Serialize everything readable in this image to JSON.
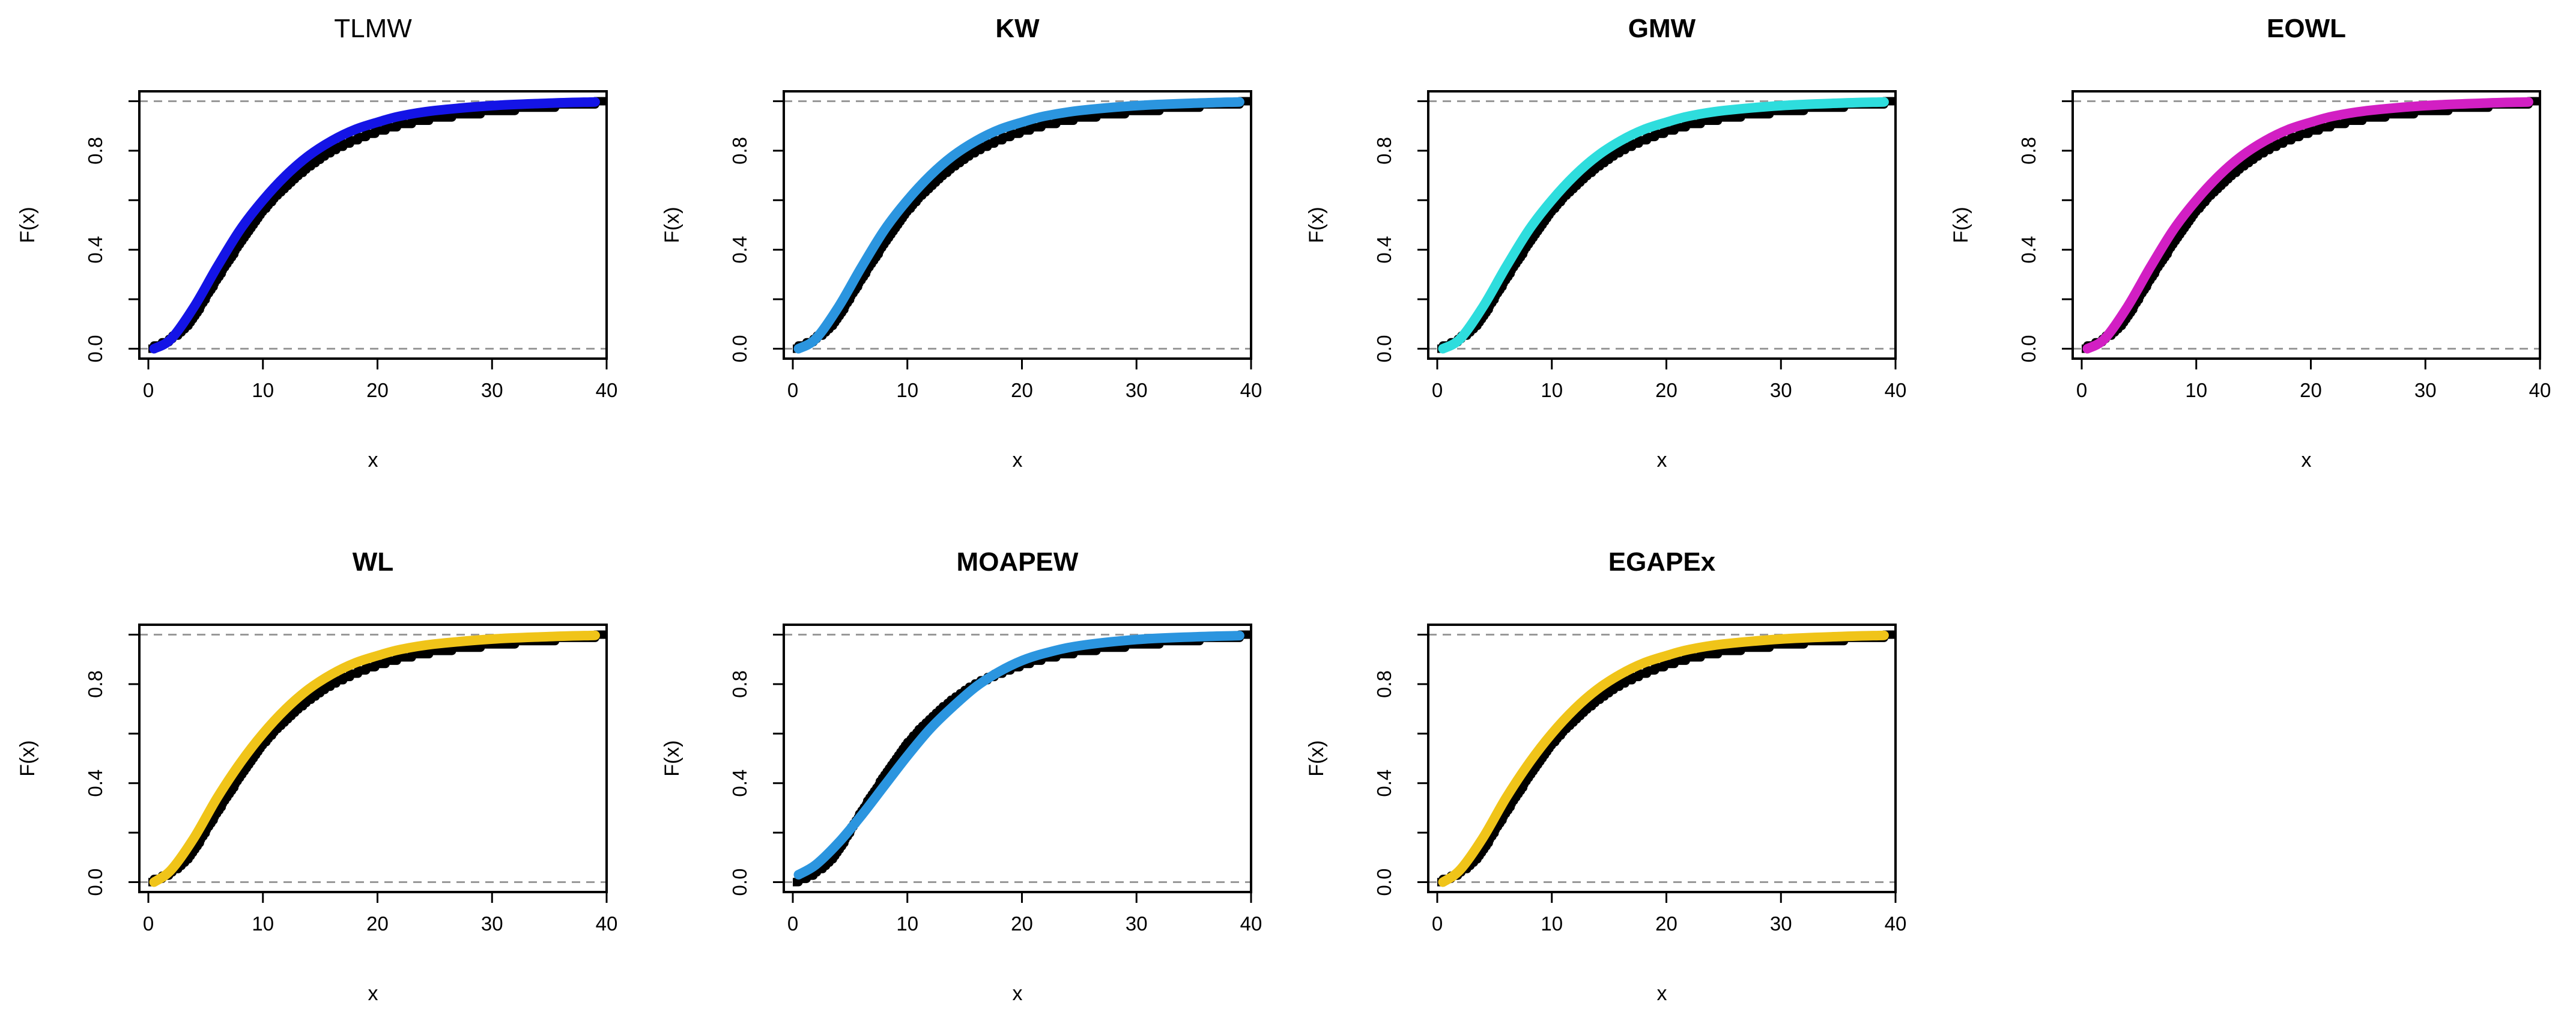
{
  "chart_data": [
    {
      "type": "line",
      "title": "TLMW",
      "title_bold": false,
      "xlabel": "x",
      "ylabel": "F(x)",
      "xlim": [
        0,
        40
      ],
      "ylim": [
        0,
        1
      ],
      "xticks": [
        "0",
        "10",
        "20",
        "30",
        "40"
      ],
      "yticks": [
        "0.0",
        "0.4",
        "0.8"
      ],
      "reference_lines": [
        0,
        1
      ],
      "series": [
        {
          "name": "Empirical CDF",
          "color": "#000000",
          "style": "step"
        },
        {
          "name": "TLMW fitted CDF",
          "color": "#1414E6",
          "style": "smooth",
          "x": [
            0.5,
            2,
            4,
            6,
            8,
            10,
            12,
            14,
            16,
            18,
            20,
            22,
            25,
            30,
            35,
            39
          ],
          "values": [
            0.0,
            0.04,
            0.17,
            0.33,
            0.48,
            0.6,
            0.7,
            0.78,
            0.84,
            0.885,
            0.915,
            0.94,
            0.962,
            0.982,
            0.992,
            0.997
          ]
        }
      ]
    },
    {
      "type": "line",
      "title": "KW",
      "title_bold": true,
      "xlabel": "x",
      "ylabel": "F(x)",
      "xlim": [
        0,
        40
      ],
      "ylim": [
        0,
        1
      ],
      "xticks": [
        "0",
        "10",
        "20",
        "30",
        "40"
      ],
      "yticks": [
        "0.0",
        "0.4",
        "0.8"
      ],
      "reference_lines": [
        0,
        1
      ],
      "series": [
        {
          "name": "Empirical CDF",
          "color": "#000000",
          "style": "step"
        },
        {
          "name": "KW fitted CDF",
          "color": "#2B95DF",
          "style": "smooth",
          "x": [
            0.5,
            2,
            4,
            6,
            8,
            10,
            12,
            14,
            16,
            18,
            20,
            22,
            25,
            30,
            35,
            39
          ],
          "values": [
            0.0,
            0.04,
            0.17,
            0.33,
            0.48,
            0.6,
            0.7,
            0.78,
            0.84,
            0.885,
            0.915,
            0.94,
            0.962,
            0.982,
            0.992,
            0.997
          ]
        }
      ]
    },
    {
      "type": "line",
      "title": "GMW",
      "title_bold": true,
      "xlabel": "x",
      "ylabel": "F(x)",
      "xlim": [
        0,
        40
      ],
      "ylim": [
        0,
        1
      ],
      "xticks": [
        "0",
        "10",
        "20",
        "30",
        "40"
      ],
      "yticks": [
        "0.0",
        "0.4",
        "0.8"
      ],
      "reference_lines": [
        0,
        1
      ],
      "series": [
        {
          "name": "Empirical CDF",
          "color": "#000000",
          "style": "step"
        },
        {
          "name": "GMW fitted CDF",
          "color": "#2EDDDD",
          "style": "smooth",
          "x": [
            0.5,
            2,
            4,
            6,
            8,
            10,
            12,
            14,
            16,
            18,
            20,
            22,
            25,
            30,
            35,
            39
          ],
          "values": [
            0.0,
            0.04,
            0.17,
            0.33,
            0.48,
            0.6,
            0.7,
            0.78,
            0.84,
            0.885,
            0.915,
            0.94,
            0.962,
            0.982,
            0.992,
            0.997
          ]
        }
      ]
    },
    {
      "type": "line",
      "title": "EOWL",
      "title_bold": true,
      "xlabel": "x",
      "ylabel": "F(x)",
      "xlim": [
        0,
        40
      ],
      "ylim": [
        0,
        1
      ],
      "xticks": [
        "0",
        "10",
        "20",
        "30",
        "40"
      ],
      "yticks": [
        "0.0",
        "0.4",
        "0.8"
      ],
      "reference_lines": [
        0,
        1
      ],
      "series": [
        {
          "name": "Empirical CDF",
          "color": "#000000",
          "style": "step"
        },
        {
          "name": "EOWL fitted CDF",
          "color": "#D21FC3",
          "style": "smooth",
          "x": [
            0.5,
            2,
            4,
            6,
            8,
            10,
            12,
            14,
            16,
            18,
            20,
            22,
            25,
            30,
            35,
            39
          ],
          "values": [
            0.0,
            0.04,
            0.17,
            0.33,
            0.48,
            0.6,
            0.7,
            0.78,
            0.84,
            0.885,
            0.915,
            0.94,
            0.962,
            0.982,
            0.992,
            0.997
          ]
        }
      ]
    },
    {
      "type": "line",
      "title": "WL",
      "title_bold": true,
      "xlabel": "x",
      "ylabel": "F(x)",
      "xlim": [
        0,
        40
      ],
      "ylim": [
        0,
        1
      ],
      "xticks": [
        "0",
        "10",
        "20",
        "30",
        "40"
      ],
      "yticks": [
        "0.0",
        "0.4",
        "0.8"
      ],
      "reference_lines": [
        0,
        1
      ],
      "series": [
        {
          "name": "Empirical CDF",
          "color": "#000000",
          "style": "step"
        },
        {
          "name": "WL fitted CDF",
          "color": "#F0C419",
          "style": "smooth",
          "x": [
            0.5,
            2,
            4,
            6,
            8,
            10,
            12,
            14,
            16,
            18,
            20,
            22,
            25,
            30,
            35,
            39
          ],
          "values": [
            0.0,
            0.05,
            0.18,
            0.34,
            0.48,
            0.6,
            0.7,
            0.78,
            0.84,
            0.885,
            0.915,
            0.94,
            0.962,
            0.982,
            0.992,
            0.997
          ]
        }
      ]
    },
    {
      "type": "line",
      "title": "MOAPEW",
      "title_bold": true,
      "xlabel": "x",
      "ylabel": "F(x)",
      "xlim": [
        0,
        40
      ],
      "ylim": [
        0,
        1
      ],
      "xticks": [
        "0",
        "10",
        "20",
        "30",
        "40"
      ],
      "yticks": [
        "0.0",
        "0.4",
        "0.8"
      ],
      "reference_lines": [
        0,
        1
      ],
      "series": [
        {
          "name": "Empirical CDF",
          "color": "#000000",
          "style": "step"
        },
        {
          "name": "MOAPEW fitted CDF",
          "color": "#2B95DF",
          "style": "smooth",
          "x": [
            0.5,
            2,
            4,
            6,
            8,
            10,
            12,
            14,
            16,
            18,
            20,
            22,
            25,
            30,
            35,
            39
          ],
          "values": [
            0.03,
            0.07,
            0.16,
            0.27,
            0.39,
            0.51,
            0.62,
            0.71,
            0.79,
            0.85,
            0.895,
            0.925,
            0.955,
            0.98,
            0.991,
            0.996
          ]
        }
      ]
    },
    {
      "type": "line",
      "title": "EGAPEx",
      "title_bold": true,
      "xlabel": "x",
      "ylabel": "F(x)",
      "xlim": [
        0,
        40
      ],
      "ylim": [
        0,
        1
      ],
      "xticks": [
        "0",
        "10",
        "20",
        "30",
        "40"
      ],
      "yticks": [
        "0.0",
        "0.4",
        "0.8"
      ],
      "reference_lines": [
        0,
        1
      ],
      "series": [
        {
          "name": "Empirical CDF",
          "color": "#000000",
          "style": "step"
        },
        {
          "name": "EGAPEx fitted CDF",
          "color": "#F0C419",
          "style": "smooth",
          "x": [
            0.5,
            2,
            4,
            6,
            8,
            10,
            12,
            14,
            16,
            18,
            20,
            22,
            25,
            30,
            35,
            39
          ],
          "values": [
            0.0,
            0.05,
            0.18,
            0.34,
            0.48,
            0.6,
            0.7,
            0.78,
            0.84,
            0.885,
            0.915,
            0.94,
            0.962,
            0.982,
            0.992,
            0.997
          ]
        }
      ]
    }
  ],
  "empirical_sample": [
    0.5,
    1.2,
    1.8,
    2.1,
    2.6,
    2.9,
    3.2,
    3.5,
    3.7,
    3.9,
    4.1,
    4.3,
    4.5,
    4.6,
    4.8,
    5.0,
    5.1,
    5.3,
    5.5,
    5.7,
    5.8,
    6.0,
    6.2,
    6.4,
    6.5,
    6.7,
    6.9,
    7.1,
    7.3,
    7.5,
    7.6,
    7.8,
    8.0,
    8.2,
    8.4,
    8.6,
    8.8,
    9.0,
    9.2,
    9.4,
    9.6,
    9.8,
    10.0,
    10.3,
    10.5,
    10.8,
    11.0,
    11.3,
    11.6,
    11.9,
    12.2,
    12.5,
    12.8,
    13.1,
    13.5,
    13.8,
    14.2,
    14.6,
    15.0,
    15.4,
    15.9,
    16.4,
    17.0,
    17.6,
    18.3,
    19.0,
    19.8,
    20.7,
    21.7,
    23.0,
    24.5,
    26.5,
    29.0,
    32.0,
    35.5,
    39.0
  ]
}
